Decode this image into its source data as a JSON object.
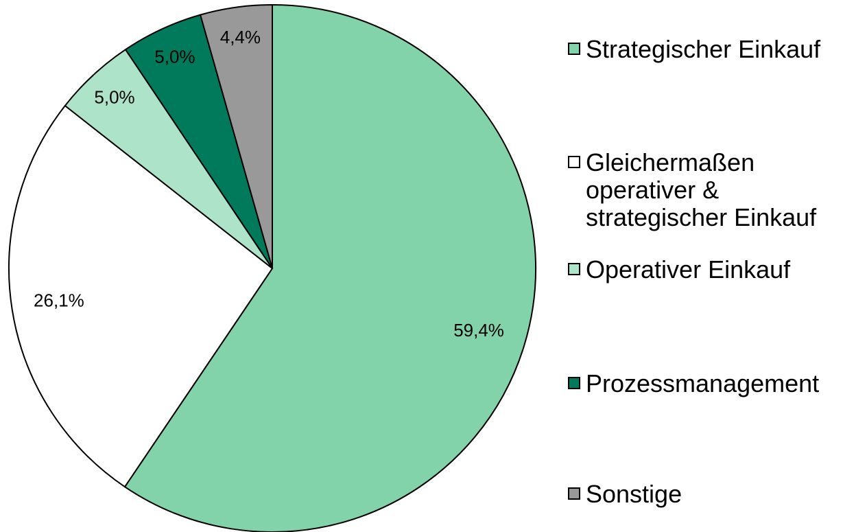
{
  "chart_data": {
    "type": "pie",
    "categories": [
      "Strategischer Einkauf",
      "Gleichermaßen operativer & strategischer Einkauf",
      "Operativer Einkauf",
      "Prozessmanagement",
      "Sonstige"
    ],
    "values": [
      59.4,
      26.1,
      5.0,
      5.0,
      4.4
    ],
    "value_labels": [
      "59,4%",
      "26,1%",
      "5,0%",
      "5,0%",
      "4,4%"
    ],
    "colors": [
      "#82d3aa",
      "#ffffff",
      "#ade4c9",
      "#007a5a",
      "#999999"
    ],
    "legend": "right"
  }
}
